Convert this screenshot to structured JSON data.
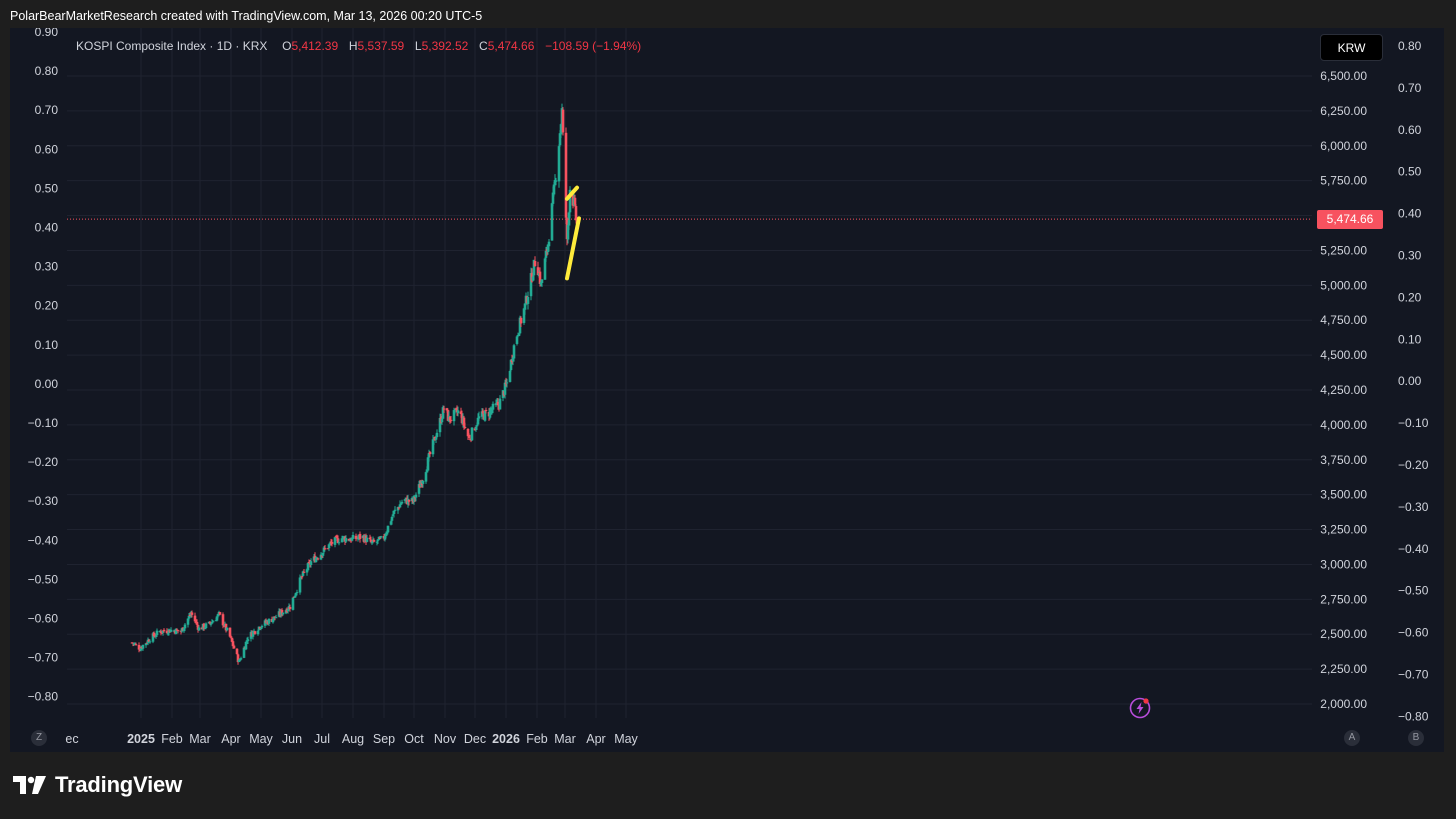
{
  "caption": "PolarBearMarketResearch created with TradingView.com, Mar 13, 2026 00:20 UTC-5",
  "legend": {
    "symbol": "KOSPI Composite Index · 1D · KRX",
    "o_label": "O",
    "o_value": "5,412.39",
    "h_label": "H",
    "h_value": "5,537.59",
    "l_label": "L",
    "l_value": "5,392.52",
    "c_label": "C",
    "c_value": "5,474.66",
    "change": "−108.59 (−1.94%)"
  },
  "currency_button": "KRW",
  "last_price_tag": "5,474.66",
  "footer_brand": "TradingView",
  "scale_buttons": {
    "z": "Z",
    "a": "A",
    "b": "B"
  },
  "colors": {
    "up": "#22ab94",
    "down": "#f7525f",
    "background": "#131722",
    "highlight": "#ffeb3b"
  },
  "chart_data": {
    "type": "candlestick",
    "symbol": "KOSPI Composite Index",
    "interval": "1D",
    "currency": "KRW",
    "last_close": 5474.66,
    "right_axis_ticks": [
      "6,500.00",
      "6,250.00",
      "6,000.00",
      "5,750.00",
      "5,500.00",
      "5,250.00",
      "5,000.00",
      "4,750.00",
      "4,500.00",
      "4,250.00",
      "4,000.00",
      "3,750.00",
      "3,500.00",
      "3,250.00",
      "3,000.00",
      "2,750.00",
      "2,500.00",
      "2,250.00",
      "2,000.00"
    ],
    "left_axis_ticks": [
      "0.90",
      "0.80",
      "0.70",
      "0.60",
      "0.50",
      "0.40",
      "0.30",
      "0.20",
      "0.10",
      "0.00",
      "−0.10",
      "−0.20",
      "−0.30",
      "−0.40",
      "−0.50",
      "−0.60",
      "−0.70",
      "−0.80"
    ],
    "far_right_axis_ticks": [
      "0.80",
      "0.70",
      "0.60",
      "0.50",
      "0.40",
      "0.30",
      "0.20",
      "0.10",
      "0.00",
      "−0.10",
      "−0.20",
      "−0.30",
      "−0.40",
      "−0.50",
      "−0.60",
      "−0.70",
      "−0.80"
    ],
    "x_axis_ticks": [
      {
        "label": "ec",
        "bold": false
      },
      {
        "label": "2025",
        "bold": true
      },
      {
        "label": "Feb",
        "bold": false
      },
      {
        "label": "Mar",
        "bold": false
      },
      {
        "label": "Apr",
        "bold": false
      },
      {
        "label": "May",
        "bold": false
      },
      {
        "label": "Jun",
        "bold": false
      },
      {
        "label": "Jul",
        "bold": false
      },
      {
        "label": "Aug",
        "bold": false
      },
      {
        "label": "Sep",
        "bold": false
      },
      {
        "label": "Oct",
        "bold": false
      },
      {
        "label": "Nov",
        "bold": false
      },
      {
        "label": "Dec",
        "bold": false
      },
      {
        "label": "2026",
        "bold": true
      },
      {
        "label": "Feb",
        "bold": false
      },
      {
        "label": "Mar",
        "bold": false
      },
      {
        "label": "Apr",
        "bold": false
      },
      {
        "label": "May",
        "bold": false
      }
    ],
    "price_path": [
      [
        "2024-12-23",
        2440
      ],
      [
        "2024-12-31",
        2400
      ],
      [
        "2025-01-10",
        2470
      ],
      [
        "2025-01-20",
        2520
      ],
      [
        "2025-01-31",
        2530
      ],
      [
        "2025-02-10",
        2520
      ],
      [
        "2025-02-20",
        2650
      ],
      [
        "2025-02-28",
        2540
      ],
      [
        "2025-03-10",
        2570
      ],
      [
        "2025-03-20",
        2640
      ],
      [
        "2025-03-31",
        2480
      ],
      [
        "2025-04-09",
        2300
      ],
      [
        "2025-04-18",
        2480
      ],
      [
        "2025-04-30",
        2560
      ],
      [
        "2025-05-15",
        2620
      ],
      [
        "2025-05-30",
        2700
      ],
      [
        "2025-06-10",
        2900
      ],
      [
        "2025-06-20",
        3020
      ],
      [
        "2025-06-30",
        3080
      ],
      [
        "2025-07-10",
        3150
      ],
      [
        "2025-07-20",
        3190
      ],
      [
        "2025-07-31",
        3180
      ],
      [
        "2025-08-10",
        3200
      ],
      [
        "2025-08-20",
        3150
      ],
      [
        "2025-08-31",
        3180
      ],
      [
        "2025-09-10",
        3360
      ],
      [
        "2025-09-20",
        3460
      ],
      [
        "2025-09-30",
        3450
      ],
      [
        "2025-10-10",
        3620
      ],
      [
        "2025-10-20",
        3860
      ],
      [
        "2025-10-31",
        4120
      ],
      [
        "2025-11-05",
        4040
      ],
      [
        "2025-11-15",
        4100
      ],
      [
        "2025-11-25",
        3900
      ],
      [
        "2025-12-05",
        4050
      ],
      [
        "2025-12-15",
        4090
      ],
      [
        "2025-12-25",
        4150
      ],
      [
        "2026-01-02",
        4300
      ],
      [
        "2026-01-10",
        4600
      ],
      [
        "2026-01-20",
        4850
      ],
      [
        "2026-01-31",
        5200
      ],
      [
        "2026-02-05",
        5000
      ],
      [
        "2026-02-12",
        5300
      ],
      [
        "2026-02-20",
        5800
      ],
      [
        "2026-02-26",
        6250
      ],
      [
        "2026-03-03",
        5300
      ],
      [
        "2026-03-06",
        5700
      ],
      [
        "2026-03-10",
        5580
      ],
      [
        "2026-03-12",
        5474.66
      ]
    ],
    "annotations": [
      {
        "type": "trendline",
        "color": "#ffeb3b",
        "from": [
          "2026-03-03",
          5620
        ],
        "to": [
          "2026-03-13",
          5700
        ]
      },
      {
        "type": "trendline",
        "color": "#ffeb3b",
        "from": [
          "2026-03-03",
          5050
        ],
        "to": [
          "2026-03-15",
          5480
        ]
      }
    ]
  }
}
